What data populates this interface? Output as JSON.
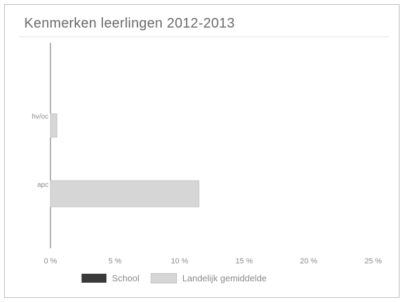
{
  "title": "Kenmerken leerlingen 2012-2013",
  "colors": {
    "school": "#3a3a3a",
    "landelijk": "#d6d6d6",
    "landelijk_border": "#c4c4c4"
  },
  "chart_data": {
    "type": "bar",
    "orientation": "horizontal",
    "categories": [
      "hv/oc",
      "apc"
    ],
    "series": [
      {
        "name": "School",
        "values": [
          0,
          0
        ]
      },
      {
        "name": "Landelijk gemiddelde",
        "values": [
          0.5,
          11.5
        ]
      }
    ],
    "xlim": [
      0,
      25
    ],
    "xticks": [
      "0 %",
      "5 %",
      "10 %",
      "15 %",
      "20 %",
      "25 %"
    ],
    "title": "Kenmerken leerlingen 2012-2013",
    "xlabel": "",
    "ylabel": "",
    "grid": false,
    "legend_position": "bottom"
  }
}
